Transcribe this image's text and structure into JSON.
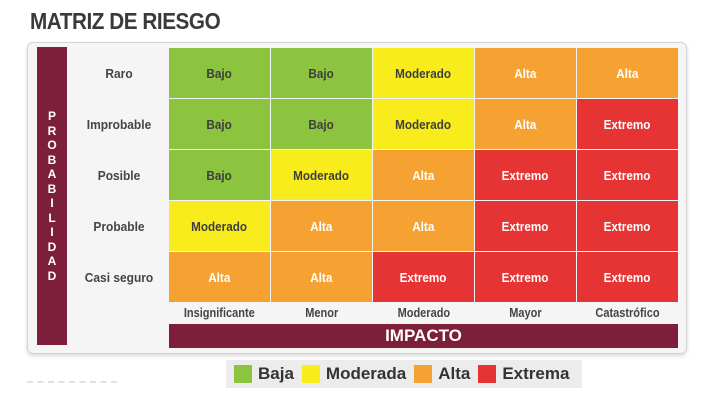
{
  "title": "MATRIZ DE RIESGO",
  "probability_axis": {
    "label": "PROBABILIDAD",
    "letters": [
      "P",
      "R",
      "O",
      "B",
      "A",
      "B",
      "I",
      "L",
      "I",
      "D",
      "A",
      "D"
    ]
  },
  "impact_axis": {
    "label": "IMPACTO"
  },
  "rows": [
    {
      "label": "Raro",
      "cells": [
        {
          "text": "Bajo",
          "level": "low"
        },
        {
          "text": "Bajo",
          "level": "low"
        },
        {
          "text": "Moderado",
          "level": "moderate"
        },
        {
          "text": "Alta",
          "level": "high"
        },
        {
          "text": "Alta",
          "level": "high"
        }
      ]
    },
    {
      "label": "Improbable",
      "cells": [
        {
          "text": "Bajo",
          "level": "low"
        },
        {
          "text": "Bajo",
          "level": "low"
        },
        {
          "text": "Moderado",
          "level": "moderate"
        },
        {
          "text": "Alta",
          "level": "high"
        },
        {
          "text": "Extremo",
          "level": "extreme"
        }
      ]
    },
    {
      "label": "Posible",
      "cells": [
        {
          "text": "Bajo",
          "level": "low"
        },
        {
          "text": "Moderado",
          "level": "moderate"
        },
        {
          "text": "Alta",
          "level": "high"
        },
        {
          "text": "Extremo",
          "level": "extreme"
        },
        {
          "text": "Extremo",
          "level": "extreme"
        }
      ]
    },
    {
      "label": "Probable",
      "cells": [
        {
          "text": "Moderado",
          "level": "moderate"
        },
        {
          "text": "Alta",
          "level": "high"
        },
        {
          "text": "Alta",
          "level": "high"
        },
        {
          "text": "Extremo",
          "level": "extreme"
        },
        {
          "text": "Extremo",
          "level": "extreme"
        }
      ]
    },
    {
      "label": "Casi seguro",
      "cells": [
        {
          "text": "Alta",
          "level": "high"
        },
        {
          "text": "Alta",
          "level": "high"
        },
        {
          "text": "Extremo",
          "level": "extreme"
        },
        {
          "text": "Extremo",
          "level": "extreme"
        },
        {
          "text": "Extremo",
          "level": "extreme"
        }
      ]
    }
  ],
  "columns": [
    "Insignificante",
    "Menor",
    "Moderado",
    "Mayor",
    "Catastrófico"
  ],
  "legend": [
    {
      "label": "Baja",
      "color": "#8cc43f"
    },
    {
      "label": "Moderada",
      "color": "#f8ec1c"
    },
    {
      "label": "Alta",
      "color": "#f5a233"
    },
    {
      "label": "Extrema",
      "color": "#e53433"
    }
  ],
  "colors": {
    "axis_bar": "#7d1f3b",
    "low": "#8cc43f",
    "moderate": "#f8ec1c",
    "high": "#f5a233",
    "extreme": "#e53433"
  }
}
